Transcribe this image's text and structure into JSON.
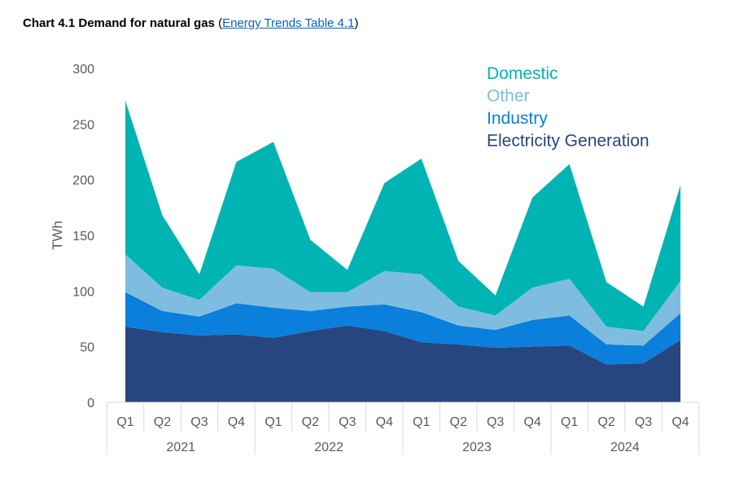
{
  "title": {
    "main": "Chart 4.1 Demand for natural gas",
    "open": "(",
    "link": "Energy Trends Table 4.1",
    "close": ")"
  },
  "chart_data": {
    "type": "area",
    "stacked": true,
    "ylabel": "TWh",
    "ylim": [
      0,
      300
    ],
    "yticks": [
      0,
      50,
      100,
      150,
      200,
      250,
      300
    ],
    "categories": [
      "Q1",
      "Q2",
      "Q3",
      "Q4",
      "Q1",
      "Q2",
      "Q3",
      "Q4",
      "Q1",
      "Q2",
      "Q3",
      "Q4",
      "Q1",
      "Q2",
      "Q3",
      "Q4"
    ],
    "years": [
      "2021",
      "2022",
      "2023",
      "2024"
    ],
    "legend_placement": "top-right",
    "grid": false,
    "series": [
      {
        "name": "Electricity Generation",
        "color": "#27467f",
        "values": [
          68,
          63,
          60,
          61,
          58,
          64,
          69,
          64,
          54,
          52,
          49,
          50,
          51,
          34,
          35,
          56
        ]
      },
      {
        "name": "Industry",
        "color": "#0a7fdc",
        "values": [
          31,
          19,
          17,
          28,
          27,
          18,
          17,
          24,
          27,
          17,
          16,
          24,
          27,
          18,
          16,
          24
        ]
      },
      {
        "name": "Other",
        "color": "#7fbde0",
        "values": [
          34,
          21,
          15,
          34,
          35,
          17,
          13,
          30,
          34,
          17,
          13,
          29,
          33,
          16,
          13,
          29
        ]
      },
      {
        "name": "Domestic",
        "color": "#00b4b4",
        "values": [
          138,
          65,
          23,
          93,
          114,
          47,
          20,
          79,
          104,
          41,
          18,
          81,
          103,
          40,
          22,
          86
        ]
      }
    ],
    "legend_order": [
      "Domestic",
      "Other",
      "Industry",
      "Electricity Generation"
    ]
  }
}
